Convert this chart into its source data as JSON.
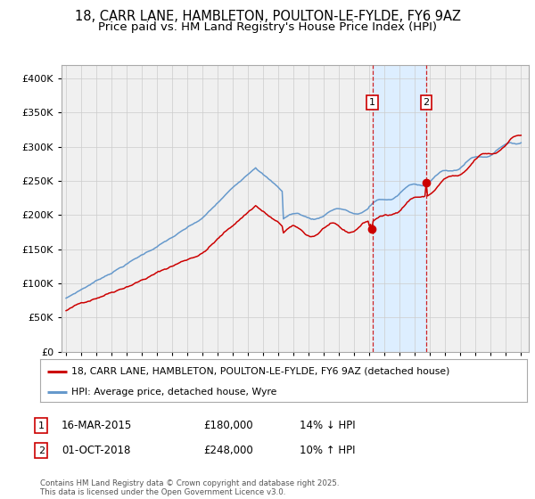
{
  "title": "18, CARR LANE, HAMBLETON, POULTON-LE-FYLDE, FY6 9AZ",
  "subtitle": "Price paid vs. HM Land Registry's House Price Index (HPI)",
  "red_label": "18, CARR LANE, HAMBLETON, POULTON-LE-FYLDE, FY6 9AZ (detached house)",
  "blue_label": "HPI: Average price, detached house, Wyre",
  "footnote": "Contains HM Land Registry data © Crown copyright and database right 2025.\nThis data is licensed under the Open Government Licence v3.0.",
  "annotation1_date": "16-MAR-2015",
  "annotation1_price": "£180,000",
  "annotation1_hpi": "14% ↓ HPI",
  "annotation2_date": "01-OCT-2018",
  "annotation2_price": "£248,000",
  "annotation2_hpi": "10% ↑ HPI",
  "ylim": [
    0,
    420000
  ],
  "yticks": [
    0,
    50000,
    100000,
    150000,
    200000,
    250000,
    300000,
    350000,
    400000
  ],
  "red_color": "#cc0000",
  "blue_color": "#6699cc",
  "vline_color": "#cc0000",
  "shade_color": "#ddeeff",
  "bg_color": "#f0f0f0",
  "grid_color": "#cccccc"
}
